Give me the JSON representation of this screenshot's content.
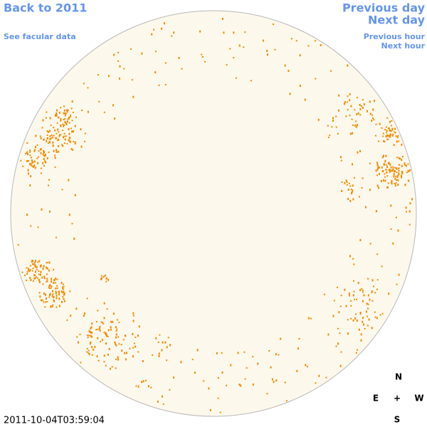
{
  "nav": {
    "back": "Back to 2011",
    "facular": "See facular data",
    "previous_day": "Previous day",
    "next_day": "Next day",
    "previous_hour": "Previous hour",
    "next_hour": "Next hour"
  },
  "timestamp": "2011-10-04T03:59:04",
  "compass": {
    "north": "N",
    "east": "E",
    "center": "+",
    "west": "W",
    "south": "S"
  }
}
